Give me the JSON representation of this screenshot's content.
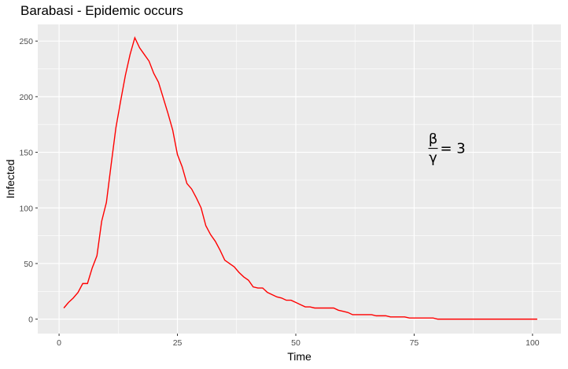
{
  "chart_data": {
    "type": "line",
    "title": "Barabasi - Epidemic occurs",
    "xlabel": "Time",
    "ylabel": "Infected",
    "xlim": [
      -4.5,
      106
    ],
    "ylim": [
      -13,
      265
    ],
    "x_ticks": [
      0,
      25,
      50,
      75,
      100
    ],
    "y_ticks": [
      0,
      50,
      100,
      150,
      200,
      250
    ],
    "grid": true,
    "series_color": "#ff0000",
    "panel_color": "#ebebeb",
    "annotation": {
      "numerator": "β",
      "denominator": "γ",
      "rhs": "= 3",
      "x": 78,
      "y": 150
    },
    "series": [
      {
        "x": [
          1,
          2,
          3,
          4,
          5,
          6,
          7,
          8,
          9,
          10,
          11,
          12,
          13,
          14,
          15,
          16,
          17,
          18,
          19,
          20,
          21,
          22,
          23,
          24,
          25,
          26,
          27,
          28,
          29,
          30,
          31,
          32,
          33,
          34,
          35,
          36,
          37,
          38,
          39,
          40,
          41,
          42,
          43,
          44,
          45,
          46,
          47,
          48,
          49,
          50,
          51,
          52,
          53,
          54,
          55,
          56,
          57,
          58,
          59,
          60,
          61,
          62,
          63,
          64,
          65,
          66,
          67,
          68,
          69,
          70,
          71,
          72,
          73,
          74,
          75,
          76,
          77,
          78,
          79,
          80,
          81,
          82,
          83,
          84,
          85,
          86,
          87,
          88,
          89,
          90,
          91,
          92,
          93,
          94,
          95,
          96,
          97,
          98,
          99,
          100,
          101
        ],
        "y": [
          10,
          15,
          19,
          24,
          32,
          32,
          46,
          57,
          88,
          105,
          139,
          172,
          196,
          219,
          238,
          253,
          244,
          238,
          232,
          221,
          213,
          199,
          185,
          170,
          148,
          137,
          122,
          117,
          109,
          100,
          84,
          76,
          70,
          62,
          53,
          50,
          47,
          42,
          38,
          35,
          29,
          28,
          28,
          24,
          22,
          20,
          19,
          17,
          17,
          15,
          13,
          11,
          11,
          10,
          10,
          10,
          10,
          10,
          8,
          7,
          6,
          4,
          4,
          4,
          4,
          4,
          3,
          3,
          3,
          2,
          2,
          2,
          2,
          1,
          1,
          1,
          1,
          1,
          1,
          0,
          0,
          0,
          0,
          0,
          0,
          0,
          0,
          0,
          0,
          0,
          0,
          0,
          0,
          0,
          0,
          0,
          0,
          0,
          0,
          0,
          0
        ]
      }
    ]
  }
}
